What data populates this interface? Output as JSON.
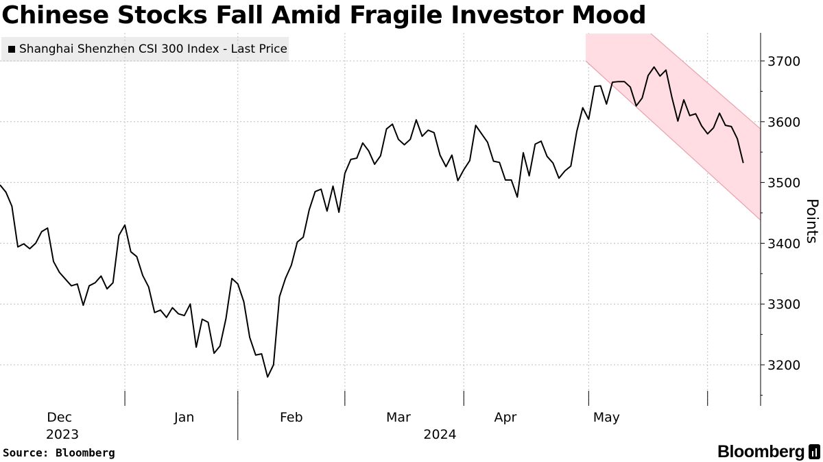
{
  "title": "Chinese Stocks Fall Amid Fragile Investor Mood",
  "source": "Source: Bloomberg",
  "brand": "Bloomberg",
  "brand_icon": "bloomberg-terminal-icon",
  "chart_data": {
    "type": "line",
    "series": [
      {
        "name": "Shanghai Shenzhen CSI 300 Index - Last Price",
        "color": "#000000",
        "values": [
          3496,
          3484,
          3461,
          3394,
          3399,
          3391,
          3400,
          3419,
          3425,
          3370,
          3352,
          3341,
          3330,
          3333,
          3298,
          3330,
          3335,
          3346,
          3325,
          3335,
          3413,
          3430,
          3386,
          3378,
          3347,
          3328,
          3286,
          3290,
          3278,
          3294,
          3284,
          3281,
          3300,
          3229,
          3275,
          3270,
          3219,
          3231,
          3276,
          3342,
          3333,
          3304,
          3245,
          3216,
          3218,
          3180,
          3200,
          3312,
          3342,
          3364,
          3402,
          3410,
          3455,
          3485,
          3489,
          3453,
          3494,
          3451,
          3515,
          3538,
          3540,
          3565,
          3552,
          3530,
          3544,
          3588,
          3596,
          3571,
          3562,
          3571,
          3603,
          3576,
          3586,
          3582,
          3545,
          3526,
          3545,
          3503,
          3521,
          3536,
          3594,
          3580,
          3566,
          3535,
          3533,
          3504,
          3504,
          3476,
          3549,
          3511,
          3563,
          3568,
          3543,
          3532,
          3507,
          3519,
          3527,
          3584,
          3623,
          3604,
          3658,
          3659,
          3629,
          3665,
          3666,
          3666,
          3657,
          3626,
          3639,
          3676,
          3690,
          3675,
          3685,
          3640,
          3601,
          3636,
          3610,
          3613,
          3593,
          3580,
          3590,
          3614,
          3594,
          3592,
          3572,
          3532
        ]
      }
    ],
    "x_labels": [
      "Dec",
      "Jan",
      "Feb",
      "Mar",
      "Apr",
      "May"
    ],
    "x_label_positions": [
      10,
      31,
      49,
      67,
      85,
      102
    ],
    "year_labels": [
      "2023",
      "2024"
    ],
    "ylabel": "Points",
    "y_ticks": [
      3200,
      3300,
      3400,
      3500,
      3600,
      3700
    ],
    "ylim": [
      3135,
      3745
    ],
    "y_axis_side": "right",
    "grid": true,
    "legend_position": "top-left",
    "channel": {
      "color": "#ffdde3",
      "edge_color": "#e8a0ac",
      "start_index": 98.5,
      "upper_start": 3745,
      "lower_start": 3700,
      "upper_end": 3588,
      "lower_end": 3438
    }
  }
}
